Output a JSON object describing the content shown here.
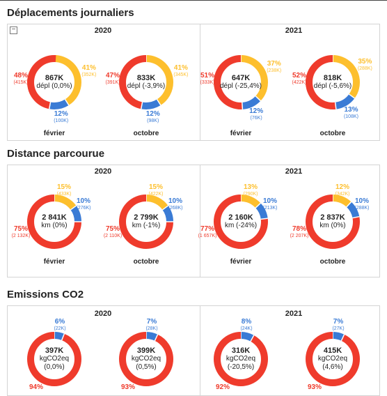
{
  "colors": {
    "red": "#ef3b2c",
    "yellow": "#fdbf2d",
    "blue": "#3a7bd5",
    "track": "#ffffff"
  },
  "sections": [
    {
      "title": "Déplacements journaliers",
      "years": [
        "2020",
        "2021"
      ],
      "donuts": [
        {
          "month": "février",
          "center": [
            "867K",
            "dépl (0,0%)"
          ],
          "segments": [
            {
              "color": "yellow",
              "pct": 41,
              "label": "41%",
              "count": "(352K)"
            },
            {
              "color": "blue",
              "pct": 12,
              "label": "12%",
              "count": "(100K)"
            },
            {
              "color": "red",
              "pct": 48,
              "label": "48%",
              "count": "(415K)"
            }
          ]
        },
        {
          "month": "octobre",
          "center": [
            "833K",
            "dépl (-3,9%)"
          ],
          "segments": [
            {
              "color": "yellow",
              "pct": 41,
              "label": "41%",
              "count": "(345K)"
            },
            {
              "color": "blue",
              "pct": 12,
              "label": "12%",
              "count": "(98K)"
            },
            {
              "color": "red",
              "pct": 47,
              "label": "47%",
              "count": "(391K)"
            }
          ]
        },
        {
          "month": "février",
          "center": [
            "647K",
            "dépl (-25,4%)"
          ],
          "segments": [
            {
              "color": "yellow",
              "pct": 37,
              "label": "37%",
              "count": "(238K)"
            },
            {
              "color": "blue",
              "pct": 12,
              "label": "12%",
              "count": "(76K)"
            },
            {
              "color": "red",
              "pct": 51,
              "label": "51%",
              "count": "(333K)"
            }
          ]
        },
        {
          "month": "octobre",
          "center": [
            "818K",
            "dépl (-5,6%)"
          ],
          "segments": [
            {
              "color": "yellow",
              "pct": 35,
              "label": "35%",
              "count": "(288K)"
            },
            {
              "color": "blue",
              "pct": 13,
              "label": "13%",
              "count": "(108K)"
            },
            {
              "color": "red",
              "pct": 52,
              "label": "52%",
              "count": "(422K)"
            }
          ]
        }
      ]
    },
    {
      "title": "Distance parcourue",
      "years": [
        "2020",
        "2021"
      ],
      "donuts": [
        {
          "month": "février",
          "center": [
            "2 841K",
            "km (0%)"
          ],
          "segments": [
            {
              "color": "yellow",
              "pct": 15,
              "label": "15%",
              "count": "(433K)"
            },
            {
              "color": "blue",
              "pct": 10,
              "label": "10%",
              "count": "(276K)"
            },
            {
              "color": "red",
              "pct": 75,
              "label": "75%",
              "count": "(2 132K)"
            }
          ]
        },
        {
          "month": "octobre",
          "center": [
            "2 799K",
            "km (-1%)"
          ],
          "segments": [
            {
              "color": "yellow",
              "pct": 15,
              "label": "15%",
              "count": "(422K)"
            },
            {
              "color": "blue",
              "pct": 10,
              "label": "10%",
              "count": "(268K)"
            },
            {
              "color": "red",
              "pct": 75,
              "label": "75%",
              "count": "(2 110K)"
            }
          ]
        },
        {
          "month": "février",
          "center": [
            "2 160K",
            "km (-24%)"
          ],
          "segments": [
            {
              "color": "yellow",
              "pct": 13,
              "label": "13%",
              "count": "(290K)"
            },
            {
              "color": "blue",
              "pct": 10,
              "label": "10%",
              "count": "(213K)"
            },
            {
              "color": "red",
              "pct": 77,
              "label": "77%",
              "count": "(1 657K)"
            }
          ]
        },
        {
          "month": "octobre",
          "center": [
            "2 837K",
            "km (0%)"
          ],
          "segments": [
            {
              "color": "yellow",
              "pct": 12,
              "label": "12%",
              "count": "(342K)"
            },
            {
              "color": "blue",
              "pct": 10,
              "label": "10%",
              "count": "(288K)"
            },
            {
              "color": "red",
              "pct": 78,
              "label": "78%",
              "count": "(2 207K)"
            }
          ]
        }
      ]
    },
    {
      "title": "Emissions CO2",
      "years": [
        "2020",
        "2021"
      ],
      "donuts": [
        {
          "month": "",
          "center": [
            "397K",
            "kgCO2eq",
            "(0,0%)"
          ],
          "segments": [
            {
              "color": "blue",
              "pct": 6,
              "label": "6%",
              "count": "(22K)"
            },
            {
              "color": "red",
              "pct": 94,
              "label": "94%",
              "count": ""
            }
          ]
        },
        {
          "month": "",
          "center": [
            "399K",
            "kgCO2eq",
            "(0,5%)"
          ],
          "segments": [
            {
              "color": "blue",
              "pct": 7,
              "label": "7%",
              "count": "(28K)"
            },
            {
              "color": "red",
              "pct": 93,
              "label": "93%",
              "count": ""
            }
          ]
        },
        {
          "month": "",
          "center": [
            "316K",
            "kgCO2eq",
            "(-20,5%)"
          ],
          "segments": [
            {
              "color": "blue",
              "pct": 8,
              "label": "8%",
              "count": "(24K)"
            },
            {
              "color": "red",
              "pct": 92,
              "label": "92%",
              "count": ""
            }
          ]
        },
        {
          "month": "",
          "center": [
            "415K",
            "kgCO2eq",
            "(4,6%)"
          ],
          "segments": [
            {
              "color": "blue",
              "pct": 7,
              "label": "7%",
              "count": "(27K)"
            },
            {
              "color": "red",
              "pct": 93,
              "label": "93%",
              "count": ""
            }
          ]
        }
      ]
    }
  ],
  "chart_data": [
    {
      "type": "pie",
      "title": "Déplacements journaliers",
      "categories": [
        "2020 février",
        "2020 octobre",
        "2021 février",
        "2021 octobre"
      ],
      "series": [
        {
          "values": [
            41,
            41,
            37,
            35
          ],
          "counts": [
            "352K",
            "345K",
            "238K",
            "288K"
          ]
        },
        {
          "values": [
            12,
            12,
            12,
            13
          ],
          "counts": [
            "100K",
            "98K",
            "76K",
            "108K"
          ]
        },
        {
          "values": [
            48,
            47,
            51,
            52
          ],
          "counts": [
            "415K",
            "391K",
            "333K",
            "422K"
          ]
        }
      ],
      "totals": [
        "867K dépl (0,0%)",
        "833K dépl (-3,9%)",
        "647K dépl (-25,4%)",
        "818K dépl (-5,6%)"
      ]
    },
    {
      "type": "pie",
      "title": "Distance parcourue",
      "categories": [
        "2020 février",
        "2020 octobre",
        "2021 février",
        "2021 octobre"
      ],
      "series": [
        {
          "values": [
            15,
            15,
            13,
            12
          ],
          "counts": [
            "433K",
            "422K",
            "290K",
            "342K"
          ]
        },
        {
          "values": [
            10,
            10,
            10,
            10
          ],
          "counts": [
            "276K",
            "268K",
            "213K",
            "288K"
          ]
        },
        {
          "values": [
            75,
            75,
            77,
            78
          ],
          "counts": [
            "2 132K",
            "2 110K",
            "1 657K",
            "2 207K"
          ]
        }
      ],
      "totals": [
        "2 841K km (0%)",
        "2 799K km (-1%)",
        "2 160K km (-24%)",
        "2 837K km (0%)"
      ]
    },
    {
      "type": "pie",
      "title": "Emissions CO2",
      "categories": [
        "2020",
        "2020",
        "2021",
        "2021"
      ],
      "series": [
        {
          "values": [
            6,
            7,
            8,
            7
          ],
          "counts": [
            "22K",
            "28K",
            "24K",
            "27K"
          ]
        },
        {
          "values": [
            94,
            93,
            92,
            93
          ]
        }
      ],
      "totals": [
        "397K kgCO2eq (0,0%)",
        "399K kgCO2eq (0,5%)",
        "316K kgCO2eq (-20,5%)",
        "415K kgCO2eq (4,6%)"
      ]
    }
  ]
}
